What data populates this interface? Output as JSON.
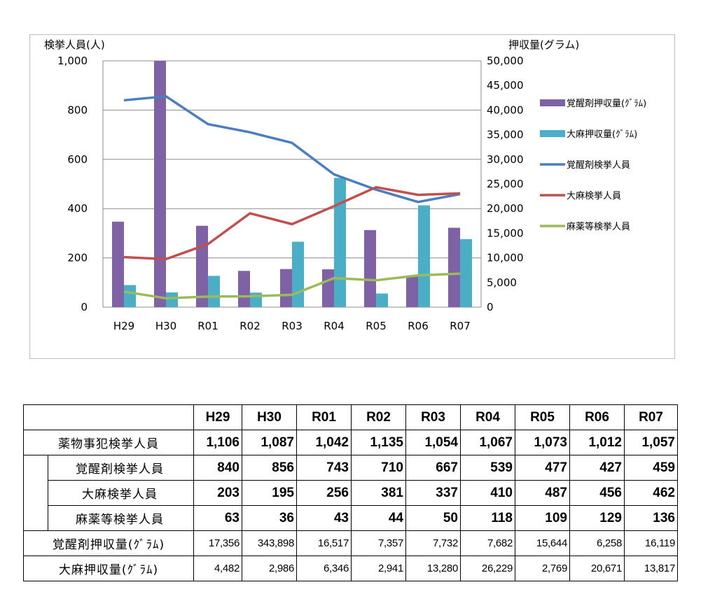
{
  "chart_data": {
    "type": "bar+line",
    "categories": [
      "H29",
      "H30",
      "R01",
      "R02",
      "R03",
      "R04",
      "R05",
      "R06",
      "R07"
    ],
    "left_axis": {
      "label": "検挙人員(人)",
      "min": 0,
      "max": 1000,
      "step": 200,
      "ticks": [
        "0",
        "200",
        "400",
        "600",
        "800",
        "1,000"
      ]
    },
    "right_axis": {
      "label": "押収量(グラム)",
      "min": 0,
      "max": 50000,
      "step": 5000,
      "ticks": [
        "0",
        "5,000",
        "10,000",
        "15,000",
        "20,000",
        "25,000",
        "30,000",
        "35,000",
        "40,000",
        "45,000",
        "50,000"
      ]
    },
    "grid": true,
    "legend_position": "right",
    "bar_series": [
      {
        "name": "覚醒剤押収量(ｸﾞﾗﾑ)",
        "color": "#7f61a6",
        "values": [
          17356,
          343898,
          16517,
          7357,
          7732,
          7682,
          15644,
          6258,
          16119
        ]
      },
      {
        "name": "大麻押収量(ｸﾞﾗﾑ)",
        "color": "#4aaec6",
        "values": [
          4482,
          2986,
          6346,
          2941,
          13280,
          26229,
          2769,
          20671,
          13817
        ]
      }
    ],
    "line_series": [
      {
        "name": "覚醒剤検挙人員",
        "color": "#4a7ec0",
        "values": [
          840,
          856,
          743,
          710,
          667,
          539,
          477,
          427,
          459
        ]
      },
      {
        "name": "大麻検挙人員",
        "color": "#c0504d",
        "values": [
          203,
          195,
          256,
          381,
          337,
          410,
          487,
          456,
          462
        ]
      },
      {
        "name": "麻薬等検挙人員",
        "color": "#9bbb59",
        "values": [
          63,
          36,
          43,
          44,
          50,
          118,
          109,
          129,
          136
        ]
      }
    ]
  },
  "table": {
    "years": [
      "H29",
      "H30",
      "R01",
      "R02",
      "R03",
      "R04",
      "R05",
      "R06",
      "R07"
    ],
    "total_row": {
      "label": "薬物事犯検挙人員",
      "values": [
        "1,106",
        "1,087",
        "1,042",
        "1,135",
        "1,054",
        "1,067",
        "1,073",
        "1,012",
        "1,057"
      ]
    },
    "sub_rows": [
      {
        "label": "覚醒剤検挙人員",
        "values": [
          "840",
          "856",
          "743",
          "710",
          "667",
          "539",
          "477",
          "427",
          "459"
        ]
      },
      {
        "label": "大麻検挙人員",
        "values": [
          "203",
          "195",
          "256",
          "381",
          "337",
          "410",
          "487",
          "456",
          "462"
        ]
      },
      {
        "label": "麻薬等検挙人員",
        "values": [
          "63",
          "36",
          "43",
          "44",
          "50",
          "118",
          "109",
          "129",
          "136"
        ]
      }
    ],
    "seizure_rows": [
      {
        "label": "覚醒剤押収量(ｸﾞﾗﾑ)",
        "values": [
          "17,356",
          "343,898",
          "16,517",
          "7,357",
          "7,732",
          "7,682",
          "15,644",
          "6,258",
          "16,119"
        ]
      },
      {
        "label": "大麻押収量(ｸﾞﾗﾑ)",
        "values": [
          "4,482",
          "2,986",
          "6,346",
          "2,941",
          "13,280",
          "26,229",
          "2,769",
          "20,671",
          "13,817"
        ]
      }
    ]
  }
}
